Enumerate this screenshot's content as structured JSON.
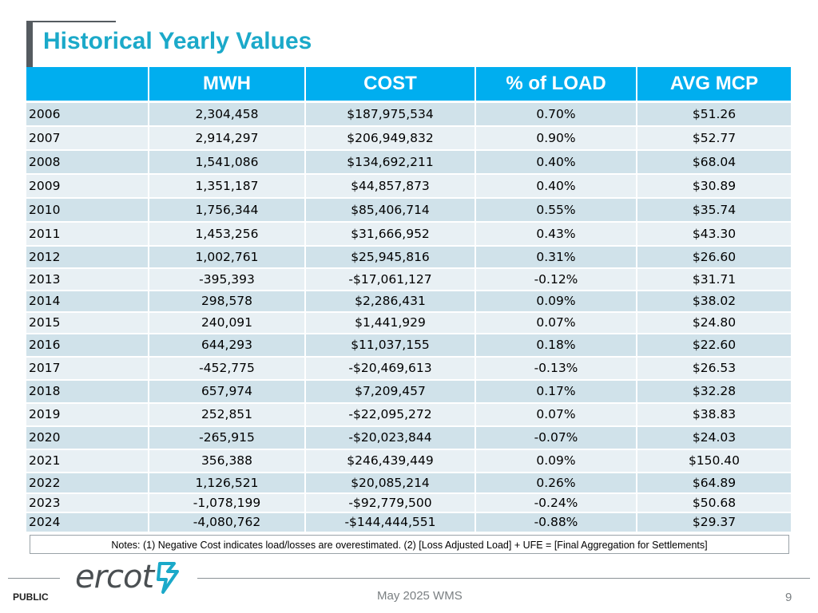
{
  "title": "Historical Yearly Values",
  "table": {
    "headers": [
      "",
      "MWH",
      "COST",
      "% of LOAD",
      "AVG MCP"
    ],
    "rows": [
      {
        "year": "2006",
        "mwh": "2,304,458",
        "cost": "$187,975,534",
        "load": "0.70%",
        "mcp": "$51.26"
      },
      {
        "year": "2007",
        "mwh": "2,914,297",
        "cost": "$206,949,832",
        "load": "0.90%",
        "mcp": "$52.77"
      },
      {
        "year": "2008",
        "mwh": "1,541,086",
        "cost": "$134,692,211",
        "load": "0.40%",
        "mcp": "$68.04"
      },
      {
        "year": "2009",
        "mwh": "1,351,187",
        "cost": "$44,857,873",
        "load": "0.40%",
        "mcp": "$30.89"
      },
      {
        "year": "2010",
        "mwh": "1,756,344",
        "cost": "$85,406,714",
        "load": "0.55%",
        "mcp": "$35.74"
      },
      {
        "year": "2011",
        "mwh": "1,453,256",
        "cost": "$31,666,952",
        "load": "0.43%",
        "mcp": "$43.30"
      },
      {
        "year": "2012",
        "mwh": "1,002,761",
        "cost": "$25,945,816",
        "load": "0.31%",
        "mcp": "$26.60"
      },
      {
        "year": "2013",
        "mwh": "-395,393",
        "cost": "-$17,061,127",
        "load": "-0.12%",
        "mcp": "$31.71"
      },
      {
        "year": "2014",
        "mwh": "298,578",
        "cost": "$2,286,431",
        "load": "0.09%",
        "mcp": "$38.02"
      },
      {
        "year": "2015",
        "mwh": "240,091",
        "cost": "$1,441,929",
        "load": "0.07%",
        "mcp": "$24.80"
      },
      {
        "year": "2016",
        "mwh": "644,293",
        "cost": "$11,037,155",
        "load": "0.18%",
        "mcp": "$22.60"
      },
      {
        "year": "2017",
        "mwh": "-452,775",
        "cost": "-$20,469,613",
        "load": "-0.13%",
        "mcp": "$26.53"
      },
      {
        "year": "2018",
        "mwh": "657,974",
        "cost": "$7,209,457",
        "load": "0.17%",
        "mcp": "$32.28"
      },
      {
        "year": "2019",
        "mwh": "252,851",
        "cost": "-$22,095,272",
        "load": "0.07%",
        "mcp": "$38.83"
      },
      {
        "year": "2020",
        "mwh": "-265,915",
        "cost": "-$20,023,844",
        "load": "-0.07%",
        "mcp": "$24.03"
      },
      {
        "year": "2021",
        "mwh": "356,388",
        "cost": "$246,439,449",
        "load": "0.09%",
        "mcp": "$150.40"
      },
      {
        "year": "2022",
        "mwh": "1,126,521",
        "cost": "$20,085,214",
        "load": "0.26%",
        "mcp": "$64.89"
      },
      {
        "year": "2023",
        "mwh": "-1,078,199",
        "cost": "-$92,779,500",
        "load": "-0.24%",
        "mcp": "$50.68"
      },
      {
        "year": "2024",
        "mwh": "-4,080,762",
        "cost": "-$144,444,551",
        "load": "-0.88%",
        "mcp": "$29.37"
      }
    ]
  },
  "notes": "Notes: (1) Negative Cost indicates load/losses are overestimated. (2) [Loss Adjusted Load] + UFE = [Final Aggregation for Settlements]",
  "footer": {
    "logo_text": "ercot",
    "classification": "PUBLIC",
    "center": "May 2025 WMS",
    "page": "9"
  },
  "colors": {
    "title": "#1ba9c9",
    "header_bg": "#00aeef",
    "row_dark": "#d0e2ea",
    "row_light": "#e8f0f4",
    "logo_accent": "#1ba9c9"
  }
}
